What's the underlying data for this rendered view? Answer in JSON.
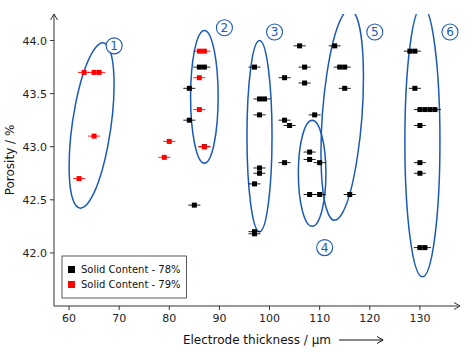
{
  "chart_data": {
    "type": "scatter",
    "xlabel": "Electrode thickness / μm",
    "ylabel": "Porosity / %",
    "xlim": [
      57,
      138
    ],
    "ylim": [
      41.5,
      44.25
    ],
    "xticks": [
      60,
      70,
      80,
      90,
      100,
      110,
      120,
      130
    ],
    "yticks": [
      {
        "value": 42.0,
        "label": "42.0"
      },
      42.5,
      {
        "value": 43.0,
        "label": "43.0"
      },
      43.5,
      {
        "value": 44.0,
        "label": "44.0"
      }
    ],
    "legend": "lower left",
    "marker": "square",
    "series": [
      {
        "name": "Solid Content - 78%",
        "color": "black",
        "x": [
          84,
          84,
          86,
          87,
          87,
          85,
          97,
          98,
          99,
          98,
          98,
          98,
          97,
          97,
          97,
          103,
          103,
          104,
          103,
          106,
          107,
          107,
          109,
          110,
          110,
          108,
          108,
          108,
          113,
          114,
          115,
          115,
          116,
          128,
          129,
          129,
          130,
          131,
          130,
          130,
          130,
          130,
          131,
          132,
          133
        ],
        "y": [
          43.55,
          43.25,
          43.75,
          43.75,
          43.0,
          42.45,
          43.75,
          43.45,
          43.45,
          43.3,
          42.8,
          42.75,
          42.65,
          42.2,
          42.18,
          43.65,
          43.25,
          43.2,
          42.85,
          43.95,
          43.75,
          43.6,
          43.3,
          42.85,
          42.55,
          42.95,
          42.88,
          42.55,
          43.95,
          43.75,
          43.75,
          43.55,
          42.55,
          43.9,
          43.9,
          43.55,
          43.35,
          43.35,
          43.2,
          42.85,
          42.75,
          42.05,
          42.05,
          43.35,
          43.35
        ],
        "xerr": 1.2
      },
      {
        "name": "Solid Content - 79%",
        "color": "red",
        "x": [
          63,
          65,
          66,
          65,
          62,
          80,
          79,
          86,
          87,
          86,
          86,
          87
        ],
        "y": [
          43.7,
          43.7,
          43.7,
          43.1,
          42.7,
          43.05,
          42.9,
          43.9,
          43.9,
          43.65,
          43.35,
          43.0
        ],
        "xerr": 1.2
      }
    ],
    "ellipses": [
      {
        "cx": 64.5,
        "cy": 43.2,
        "width": 9,
        "height": 1.35,
        "angle": 5,
        "color": "#1a5ab5"
      },
      {
        "cx": 87.0,
        "cy": 43.47,
        "width": 5.5,
        "height": 1.25,
        "angle": 0,
        "color": "#1a5ab5"
      },
      {
        "cx": 98.0,
        "cy": 43.1,
        "width": 5.0,
        "height": 1.8,
        "angle": 0,
        "color": "#1a5ab5"
      },
      {
        "cx": 108.5,
        "cy": 42.75,
        "width": 5.5,
        "height": 1.0,
        "angle": 0,
        "color": "#1a5ab5"
      },
      {
        "cx": 114.5,
        "cy": 43.3,
        "width": 8.5,
        "height": 1.85,
        "angle": 5,
        "color": "#1a5ab5"
      },
      {
        "cx": 130.5,
        "cy": 43.05,
        "width": 7.0,
        "height": 2.55,
        "angle": 0,
        "color": "#1a5ab5"
      }
    ],
    "annotations": [
      {
        "text": "1",
        "x": 69,
        "y": 43.95,
        "color": "#1a5ab5"
      },
      {
        "text": "2",
        "x": 91,
        "y": 44.12,
        "color": "#1a5ab5"
      },
      {
        "text": "3",
        "x": 101,
        "y": 44.08,
        "color": "#1a5ab5"
      },
      {
        "text": "4",
        "x": 111,
        "y": 42.05,
        "color": "#1a5ab5"
      },
      {
        "text": "5",
        "x": 121,
        "y": 44.08,
        "color": "#1a5ab5"
      },
      {
        "text": "6",
        "x": 136,
        "y": 44.08,
        "color": "#1a5ab5"
      }
    ]
  }
}
